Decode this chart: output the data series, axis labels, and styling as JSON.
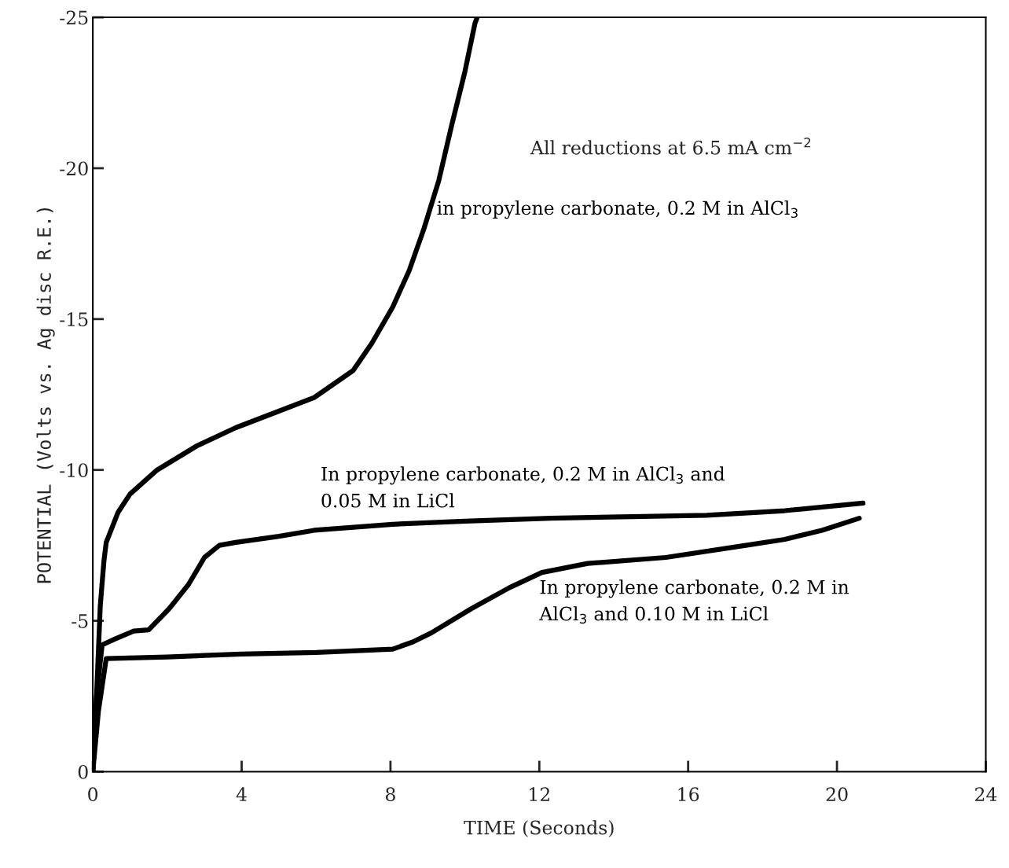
{
  "chart_data": {
    "type": "line",
    "xlabel": "TIME (Seconds)",
    "ylabel": "POTENTIAL (Volts vs. Ag disc R.E.)",
    "xlim": [
      0,
      24
    ],
    "ylim": [
      0,
      -25
    ],
    "xticks": [
      0,
      4,
      8,
      12,
      16,
      20,
      24
    ],
    "yticks": [
      -25,
      -20,
      -15,
      -10,
      -5,
      0
    ],
    "grid": false,
    "marker": "none",
    "line_style": "solid",
    "annotations": [
      "All reductions at 6.5 mA cm$^{−2}$"
    ],
    "series": [
      {
        "name": "in propylene carbonate, 0.2 M in AlCl$_{3}$",
        "color": "#000000",
        "x": [
          0,
          0.1,
          0.2,
          0.3,
          0.36,
          0.68,
          1.0,
          1.73,
          2.8,
          3.84,
          4.9,
          5.95,
          7.0,
          7.5,
          8.06,
          8.5,
          8.9,
          9.3,
          9.64,
          10.0,
          10.27,
          10.33
        ],
        "values": [
          0,
          -2.5,
          -5.5,
          -7.0,
          -7.6,
          -8.6,
          -9.2,
          -10.0,
          -10.8,
          -11.4,
          -11.9,
          -12.4,
          -13.3,
          -14.2,
          -15.4,
          -16.6,
          -18.0,
          -19.6,
          -21.4,
          -23.2,
          -24.8,
          -25
        ]
      },
      {
        "name": "In propylene carbonate, 0.2 M in AlCl$_{3}$ and\n0.05 M in LiCl",
        "color": "#000000",
        "x": [
          0,
          0.1,
          0.25,
          0.6,
          1.1,
          1.5,
          2.05,
          2.57,
          3.0,
          3.4,
          3.84,
          5.0,
          5.95,
          8.06,
          10.0,
          12.3,
          14.5,
          16.5,
          18.6,
          20.7
        ],
        "values": [
          0,
          -2.5,
          -4.2,
          -4.4,
          -4.66,
          -4.7,
          -5.4,
          -6.2,
          -7.1,
          -7.5,
          -7.6,
          -7.8,
          -8.0,
          -8.2,
          -8.3,
          -8.4,
          -8.45,
          -8.5,
          -8.65,
          -8.9
        ]
      },
      {
        "name": "In propylene carbonate, 0.2 M in\nAlCl$_{3}$ and 0.10 M in LiCl",
        "color": "#000000",
        "x": [
          0,
          0.15,
          0.36,
          2.0,
          4.0,
          6.0,
          8.06,
          8.6,
          9.1,
          10.17,
          11.2,
          12.07,
          13.3,
          15.4,
          17.55,
          18.6,
          19.6,
          20.6
        ],
        "values": [
          0,
          -2.0,
          -3.75,
          -3.8,
          -3.9,
          -3.95,
          -4.06,
          -4.3,
          -4.6,
          -5.4,
          -6.1,
          -6.6,
          -6.9,
          -7.1,
          -7.5,
          -7.7,
          -8.0,
          -8.4
        ]
      }
    ]
  }
}
